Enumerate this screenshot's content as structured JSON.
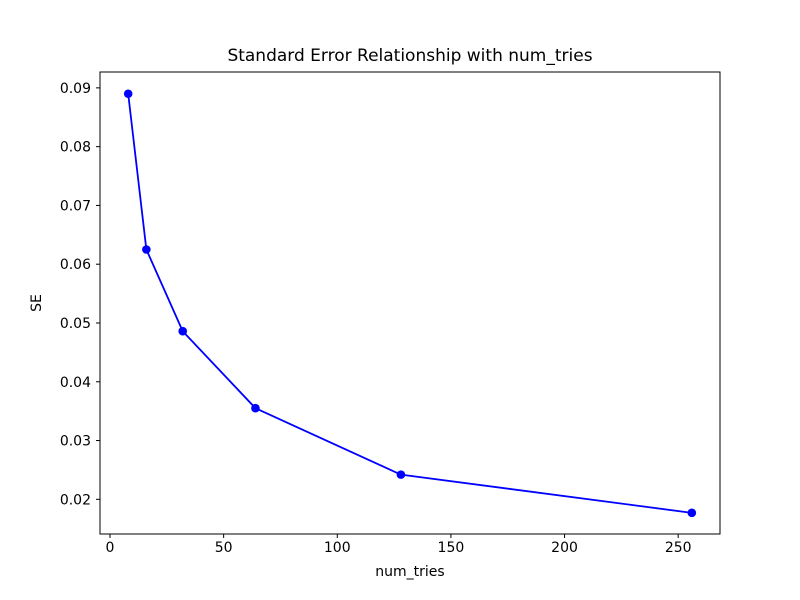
{
  "chart_data": {
    "type": "line",
    "title": "Standard Error Relationship with num_tries",
    "xlabel": "num_tries",
    "ylabel": "SE",
    "x": [
      8,
      16,
      32,
      64,
      128,
      256
    ],
    "y": [
      0.089,
      0.0625,
      0.0486,
      0.0355,
      0.0242,
      0.0177
    ],
    "series": [
      {
        "name": "SE",
        "values": [
          0.089,
          0.0625,
          0.0486,
          0.0355,
          0.0242,
          0.0177
        ]
      }
    ],
    "line_color": "#0000ff",
    "marker": "circle",
    "marker_color": "#0000ff",
    "xlim": [
      -4.4,
      268.4
    ],
    "ylim": [
      0.0141,
      0.0927
    ],
    "xticks": [
      0,
      50,
      100,
      150,
      200,
      250
    ],
    "xtick_labels": [
      "0",
      "50",
      "100",
      "150",
      "200",
      "250"
    ],
    "yticks": [
      0.02,
      0.03,
      0.04,
      0.05,
      0.06,
      0.07,
      0.08,
      0.09
    ],
    "ytick_labels": [
      "0.02",
      "0.03",
      "0.04",
      "0.05",
      "0.06",
      "0.07",
      "0.08",
      "0.09"
    ],
    "grid": false,
    "legend": null,
    "background_color": "#ffffff",
    "spine_color": "#000000",
    "tick_label_color": "#000000"
  }
}
